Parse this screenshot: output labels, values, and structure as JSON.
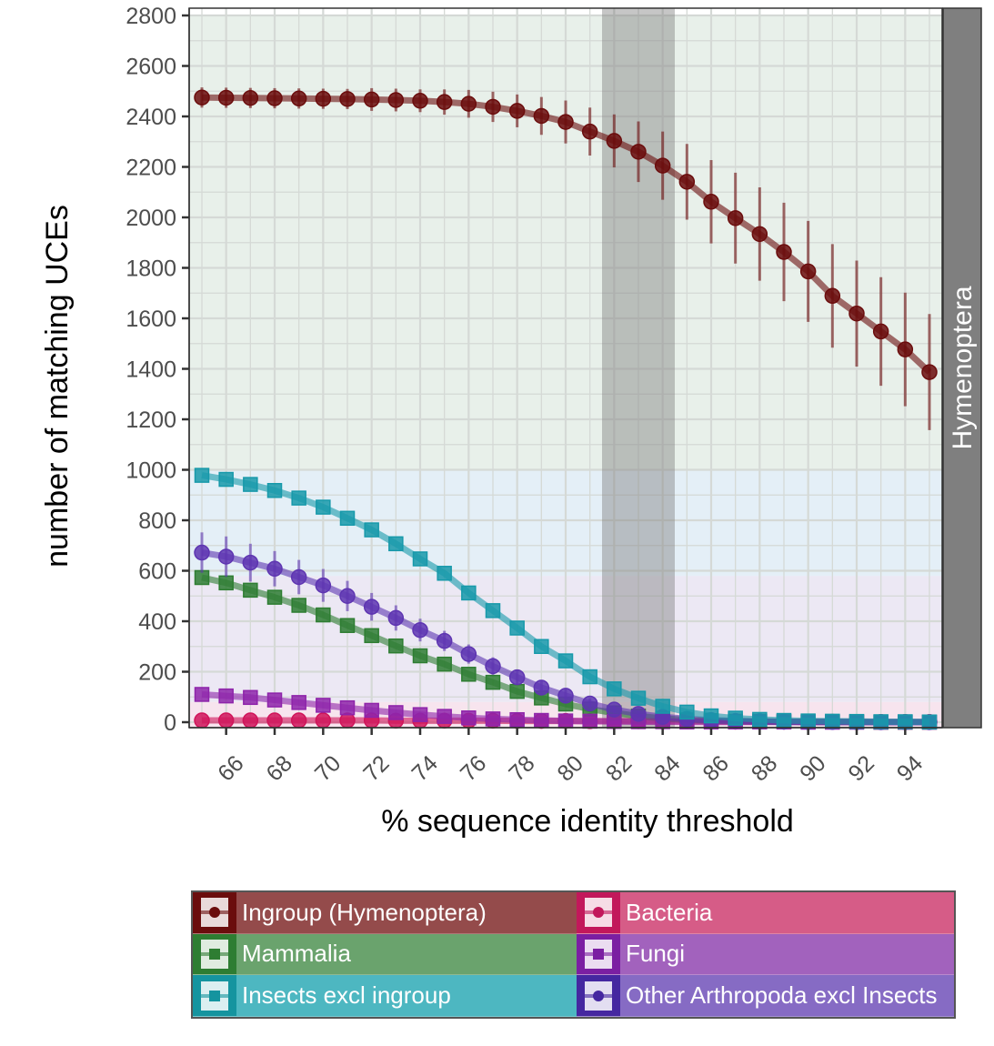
{
  "chart_data": {
    "type": "line",
    "title": "",
    "xlabel": "% sequence identity threshold",
    "ylabel": "number of matching UCEs",
    "facet_label": "Hymenoptera",
    "xlim": [
      64.5,
      95.5
    ],
    "ylim": [
      0,
      2800
    ],
    "x_ticks": [
      66,
      68,
      70,
      72,
      74,
      76,
      78,
      80,
      82,
      84,
      86,
      88,
      90,
      92,
      94
    ],
    "y_ticks": [
      0,
      200,
      400,
      600,
      800,
      1000,
      1200,
      1400,
      1600,
      1800,
      2000,
      2200,
      2400,
      2600,
      2800
    ],
    "grid": true,
    "highlight_band": {
      "x_from": 81.5,
      "x_to": 84.5,
      "color": "#808080"
    },
    "background_bands": [
      {
        "from": 0,
        "to": 80,
        "color": "#f7e4ee"
      },
      {
        "from": 80,
        "to": 580,
        "color": "#ece8f4"
      },
      {
        "from": 580,
        "to": 1000,
        "color": "#e4eff7"
      },
      {
        "from": 1000,
        "to": 2800,
        "color": "#e8f0ea"
      }
    ],
    "x": [
      65,
      66,
      67,
      68,
      69,
      70,
      71,
      72,
      73,
      74,
      75,
      76,
      77,
      78,
      79,
      80,
      81,
      82,
      83,
      84,
      85,
      86,
      87,
      88,
      89,
      90,
      91,
      92,
      93,
      94,
      95
    ],
    "series": [
      {
        "name": "Ingroup (Hymenoptera)",
        "color": "#6b0d0d",
        "marker": "circle",
        "values": [
          2475,
          2474,
          2473,
          2472,
          2471,
          2470,
          2469,
          2467,
          2465,
          2462,
          2457,
          2450,
          2438,
          2422,
          2402,
          2378,
          2340,
          2303,
          2260,
          2205,
          2141,
          2062,
          1997,
          1934,
          1863,
          1786,
          1689,
          1619,
          1548,
          1477,
          1387
        ],
        "err": [
          40,
          40,
          40,
          40,
          40,
          40,
          40,
          45,
          45,
          45,
          50,
          55,
          60,
          65,
          75,
          85,
          95,
          105,
          120,
          135,
          150,
          165,
          180,
          185,
          195,
          200,
          205,
          210,
          215,
          225,
          230
        ]
      },
      {
        "name": "Bacteria",
        "color": "#d0145a",
        "marker": "circle",
        "values": [
          7,
          7,
          7,
          7,
          7,
          7,
          7,
          7,
          6,
          6,
          6,
          6,
          6,
          5,
          5,
          5,
          4,
          4,
          4,
          3,
          3,
          3,
          2,
          2,
          2,
          2,
          2,
          1,
          1,
          1,
          1
        ]
      },
      {
        "name": "Mammalia",
        "color": "#2e7d32",
        "marker": "square",
        "values": [
          573,
          552,
          523,
          495,
          463,
          425,
          383,
          343,
          302,
          263,
          230,
          190,
          158,
          122,
          96,
          72,
          52,
          37,
          24,
          15,
          9,
          6,
          4,
          3,
          2,
          1,
          1,
          1,
          0,
          0,
          0
        ]
      },
      {
        "name": "Fungi",
        "color": "#8e24aa",
        "marker": "square",
        "values": [
          110,
          104,
          98,
          88,
          78,
          67,
          57,
          47,
          38,
          30,
          23,
          17,
          13,
          10,
          7,
          5,
          4,
          3,
          2,
          2,
          1,
          1,
          1,
          1,
          1,
          0,
          0,
          0,
          0,
          0,
          0
        ]
      },
      {
        "name": "Insects excl ingroup",
        "color": "#1799aa",
        "marker": "square",
        "values": [
          978,
          962,
          942,
          918,
          888,
          852,
          808,
          762,
          707,
          647,
          590,
          512,
          442,
          373,
          300,
          243,
          180,
          132,
          95,
          63,
          40,
          25,
          16,
          11,
          7,
          5,
          4,
          3,
          2,
          2,
          1
        ],
        "err": [
          0,
          0,
          0,
          0,
          0,
          0,
          0,
          0,
          0,
          0,
          0,
          0,
          0,
          0,
          0,
          0,
          0,
          0,
          0,
          0,
          0,
          0,
          0,
          0,
          0,
          0,
          0,
          0,
          0,
          0,
          0
        ]
      },
      {
        "name": "Other Arthropoda excl Insects",
        "color": "#5e35b1",
        "marker": "circle",
        "values": [
          672,
          656,
          632,
          608,
          575,
          542,
          500,
          457,
          413,
          365,
          322,
          270,
          222,
          178,
          137,
          105,
          74,
          50,
          33,
          21,
          13,
          8,
          5,
          3,
          2,
          1,
          1,
          1,
          0,
          0,
          0
        ],
        "err": [
          80,
          80,
          75,
          70,
          68,
          65,
          60,
          55,
          50,
          45,
          40,
          38,
          35,
          30,
          28,
          25,
          20,
          15,
          12,
          10,
          8,
          6,
          5,
          4,
          3,
          2,
          2,
          1,
          1,
          1,
          1
        ]
      }
    ],
    "legend": {
      "placement": "bottom",
      "columns": 2,
      "items": [
        {
          "label": "Ingroup (Hymenoptera)",
          "color": "#6b0d0d",
          "bg": "#944b4b",
          "marker": "circle"
        },
        {
          "label": "Bacteria",
          "color": "#c2185b",
          "bg": "#d65c87",
          "marker": "circle"
        },
        {
          "label": "Mammalia",
          "color": "#2e7d32",
          "bg": "#6aa36d",
          "marker": "square"
        },
        {
          "label": "Fungi",
          "color": "#7b1fa2",
          "bg": "#a262bd",
          "marker": "square"
        },
        {
          "label": "Insects excl ingroup",
          "color": "#15949f",
          "bg": "#4db7c1",
          "marker": "square"
        },
        {
          "label": "Other Arthropoda excl Insects",
          "color": "#4527a0",
          "bg": "#866bc4",
          "marker": "circle"
        }
      ]
    }
  }
}
